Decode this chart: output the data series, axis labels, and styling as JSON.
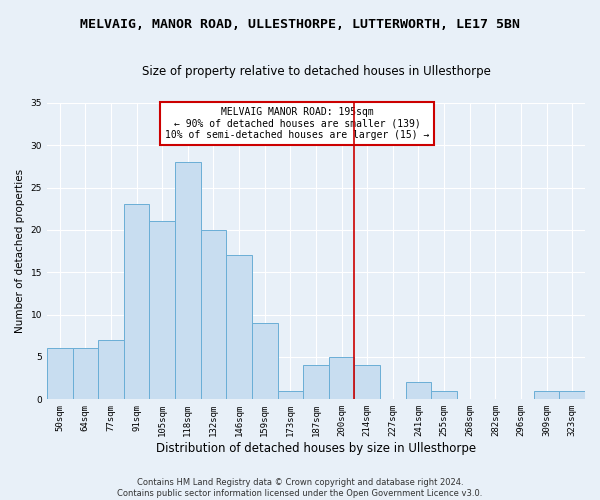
{
  "title": "MELVAIG, MANOR ROAD, ULLESTHORPE, LUTTERWORTH, LE17 5BN",
  "subtitle": "Size of property relative to detached houses in Ullesthorpe",
  "xlabel": "Distribution of detached houses by size in Ullesthorpe",
  "ylabel": "Number of detached properties",
  "categories": [
    "50sqm",
    "64sqm",
    "77sqm",
    "91sqm",
    "105sqm",
    "118sqm",
    "132sqm",
    "146sqm",
    "159sqm",
    "173sqm",
    "187sqm",
    "200sqm",
    "214sqm",
    "227sqm",
    "241sqm",
    "255sqm",
    "268sqm",
    "282sqm",
    "296sqm",
    "309sqm",
    "323sqm"
  ],
  "values": [
    6,
    6,
    7,
    23,
    21,
    28,
    20,
    17,
    9,
    1,
    4,
    5,
    4,
    0,
    2,
    1,
    0,
    0,
    0,
    1,
    1
  ],
  "bar_color": "#c8ddf0",
  "bar_edge_color": "#6aaed6",
  "vline_x": 11.5,
  "vline_color": "#cc0000",
  "annotation_box_text": "MELVAIG MANOR ROAD: 195sqm\n← 90% of detached houses are smaller (139)\n10% of semi-detached houses are larger (15) →",
  "annotation_box_edge_color": "#cc0000",
  "ylim": [
    0,
    35
  ],
  "yticks": [
    0,
    5,
    10,
    15,
    20,
    25,
    30,
    35
  ],
  "footer_line1": "Contains HM Land Registry data © Crown copyright and database right 2024.",
  "footer_line2": "Contains public sector information licensed under the Open Government Licence v3.0.",
  "bg_color": "#e8f0f8",
  "grid_color": "#ffffff",
  "title_fontsize": 9.5,
  "subtitle_fontsize": 8.5,
  "xlabel_fontsize": 8.5,
  "ylabel_fontsize": 7.5,
  "tick_fontsize": 6.5,
  "annotation_fontsize": 7.0,
  "footer_fontsize": 6.0
}
